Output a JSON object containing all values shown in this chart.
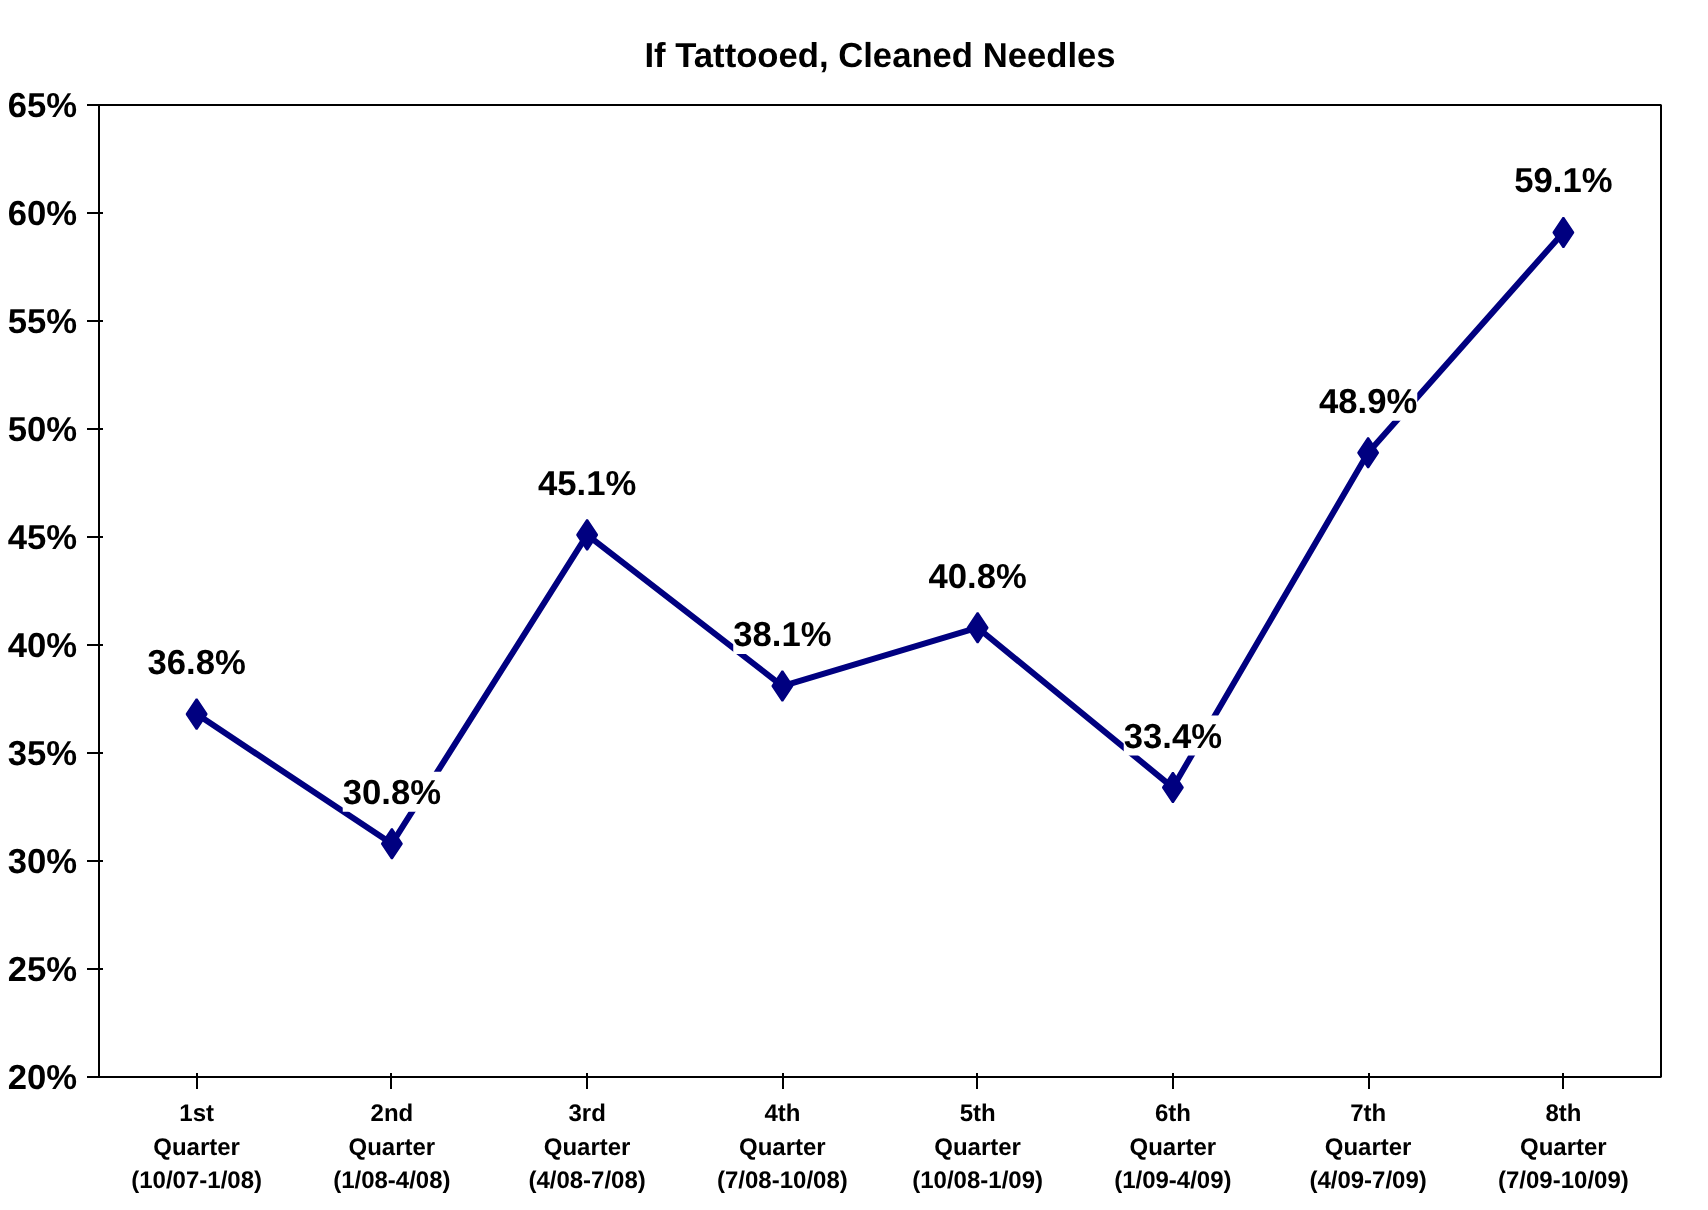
{
  "chart_data": {
    "type": "line",
    "title": "If Tattooed, Cleaned Needles",
    "categories": [
      "1st\nQuarter\n(10/07-1/08)",
      "2nd\nQuarter\n(1/08-4/08)",
      "3rd\nQuarter\n(4/08-7/08)",
      "4th\nQuarter\n(7/08-10/08)",
      "5th\nQuarter\n(10/08-1/09)",
      "6th\nQuarter\n(1/09-4/09)",
      "7th\nQuarter\n(4/09-7/09)",
      "8th\nQuarter\n(7/09-10/09)"
    ],
    "series": [
      {
        "color": "#000080",
        "values": [
          36.8,
          30.8,
          45.1,
          38.1,
          40.8,
          33.4,
          48.9,
          59.1
        ],
        "value_labels": [
          "36.8%",
          "30.8%",
          "45.1%",
          "38.1%",
          "40.8%",
          "33.4%",
          "48.9%",
          "59.1%"
        ]
      }
    ],
    "ylim": [
      20,
      65
    ],
    "yticks": [
      {
        "value": 20,
        "label": "20%"
      },
      {
        "value": 25,
        "label": "25%"
      },
      {
        "value": 30,
        "label": "30%"
      },
      {
        "value": 35,
        "label": "35%"
      },
      {
        "value": 40,
        "label": "40%"
      },
      {
        "value": 45,
        "label": "45%"
      },
      {
        "value": 50,
        "label": "50%"
      },
      {
        "value": 55,
        "label": "55%"
      },
      {
        "value": 60,
        "label": "60%"
      },
      {
        "value": 65,
        "label": "65%"
      }
    ],
    "marker": "diamond",
    "line_style": "solid",
    "grid": false
  }
}
